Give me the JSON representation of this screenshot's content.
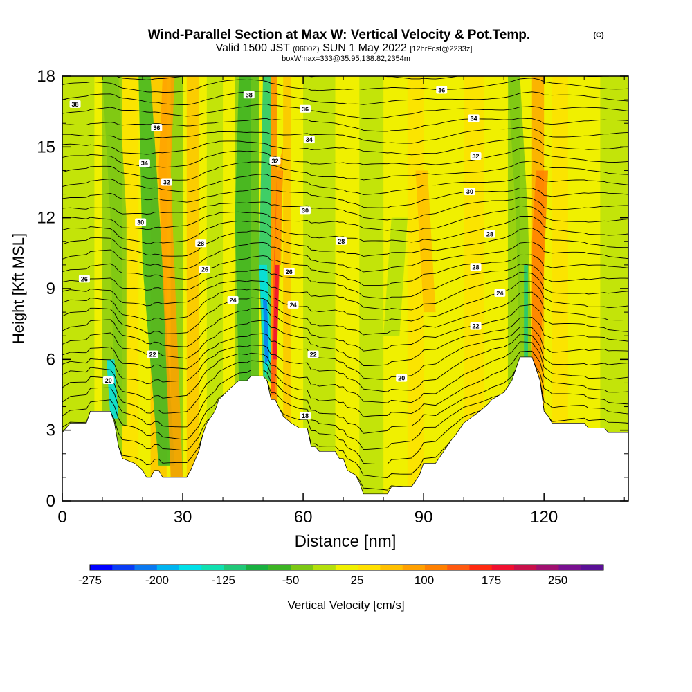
{
  "header": {
    "title": "Wind-Parallel Section at Max W: Vertical Velocity & Pot.Temp.",
    "copyright": "(C)",
    "valid_prefix": "Valid 1500 JST",
    "valid_zulu": "(0600Z)",
    "valid_date": "SUN 1 May 2022",
    "forecast": "[12hrFcst@2233z]",
    "box_info": "boxWmax=333@35.95,138.82,2354m"
  },
  "chart_data": {
    "type": "heatmap",
    "xlabel": "Distance [nm]",
    "ylabel": "Height [Kft MSL]",
    "xlim": [
      0,
      141
    ],
    "ylim": [
      0,
      18
    ],
    "x_ticks": [
      0,
      30,
      60,
      90,
      120
    ],
    "x_tick_labels": [
      "0",
      "30",
      "60",
      "90",
      "120"
    ],
    "y_ticks": [
      0,
      3,
      6,
      9,
      12,
      15,
      18
    ],
    "y_tick_labels": [
      "0",
      "3",
      "6",
      "9",
      "12",
      "15",
      "18"
    ],
    "colorbar": {
      "label": "Vertical Velocity [cm/s]",
      "tick_labels": [
        "-275",
        "-200",
        "-125",
        "-50",
        "25",
        "100",
        "175",
        "250"
      ],
      "colors": [
        "#0000ff",
        "#0a3cf4",
        "#0a78f0",
        "#00b4f0",
        "#00e0e8",
        "#10e0b0",
        "#20c878",
        "#18b040",
        "#3cb424",
        "#7cc814",
        "#b4e00c",
        "#f0f000",
        "#ffe000",
        "#ffc000",
        "#ffa000",
        "#ff8000",
        "#ff5a10",
        "#ff2a10",
        "#f01030",
        "#c8104a",
        "#a01070",
        "#781090",
        "#5a1096"
      ]
    },
    "terrain_kft": [
      [
        0,
        2.9
      ],
      [
        2,
        3.3
      ],
      [
        4,
        3.3
      ],
      [
        6,
        3.3
      ],
      [
        7,
        3.8
      ],
      [
        12,
        3.8
      ],
      [
        13,
        3.3
      ],
      [
        14,
        2.3
      ],
      [
        15,
        1.8
      ],
      [
        18,
        1.6
      ],
      [
        20,
        1.3
      ],
      [
        21,
        1.0
      ],
      [
        22,
        1.0
      ],
      [
        23,
        1.3
      ],
      [
        24,
        1.3
      ],
      [
        25,
        1.0
      ],
      [
        31,
        1.0
      ],
      [
        32,
        1.3
      ],
      [
        34,
        2.1
      ],
      [
        35,
        2.8
      ],
      [
        36,
        3.3
      ],
      [
        38,
        3.8
      ],
      [
        39,
        4.3
      ],
      [
        42,
        4.8
      ],
      [
        44,
        5.1
      ],
      [
        46,
        5.1
      ],
      [
        47,
        5.3
      ],
      [
        50,
        5.3
      ],
      [
        51,
        5.1
      ],
      [
        52,
        4.3
      ],
      [
        53,
        4.3
      ],
      [
        55,
        3.6
      ],
      [
        57,
        3.3
      ],
      [
        59,
        3.1
      ],
      [
        61,
        3.1
      ],
      [
        62,
        2.3
      ],
      [
        63,
        2.3
      ],
      [
        64,
        2.1
      ],
      [
        68,
        2.1
      ],
      [
        69,
        1.8
      ],
      [
        70,
        1.8
      ],
      [
        71,
        1.3
      ],
      [
        73,
        1.1
      ],
      [
        74,
        0.8
      ],
      [
        75,
        0.3
      ],
      [
        81,
        0.3
      ],
      [
        82,
        0.6
      ],
      [
        87,
        0.6
      ],
      [
        89,
        1.1
      ],
      [
        90,
        1.6
      ],
      [
        93,
        1.6
      ],
      [
        95,
        2.1
      ],
      [
        97,
        2.6
      ],
      [
        98,
        2.8
      ],
      [
        100,
        3.3
      ],
      [
        104,
        3.8
      ],
      [
        106,
        4.1
      ],
      [
        107,
        4.3
      ],
      [
        110,
        4.6
      ],
      [
        112,
        5.1
      ],
      [
        113,
        5.6
      ],
      [
        114,
        6.1
      ],
      [
        117,
        6.1
      ],
      [
        118,
        5.6
      ],
      [
        119,
        5.1
      ],
      [
        120,
        3.8
      ],
      [
        121,
        3.6
      ],
      [
        122,
        3.3
      ],
      [
        130,
        3.3
      ],
      [
        131,
        3.1
      ],
      [
        135,
        3.1
      ],
      [
        136,
        2.9
      ],
      [
        141,
        2.9
      ]
    ],
    "contour_labels": [
      {
        "text": "38",
        "x": 3.2,
        "y": 16.8
      },
      {
        "text": "38",
        "x": 46.5,
        "y": 17.2
      },
      {
        "text": "36",
        "x": 23.5,
        "y": 15.8
      },
      {
        "text": "36",
        "x": 60.5,
        "y": 16.6
      },
      {
        "text": "36",
        "x": 94.5,
        "y": 17.4
      },
      {
        "text": "34",
        "x": 20.5,
        "y": 14.3
      },
      {
        "text": "34",
        "x": 61.5,
        "y": 15.3
      },
      {
        "text": "34",
        "x": 102.5,
        "y": 16.2
      },
      {
        "text": "32",
        "x": 26,
        "y": 13.5
      },
      {
        "text": "32",
        "x": 53,
        "y": 14.4
      },
      {
        "text": "32",
        "x": 103,
        "y": 14.6
      },
      {
        "text": "30",
        "x": 19.5,
        "y": 11.8
      },
      {
        "text": "30",
        "x": 60.5,
        "y": 12.3
      },
      {
        "text": "30",
        "x": 101.5,
        "y": 13.1
      },
      {
        "text": "28",
        "x": 34.5,
        "y": 10.9
      },
      {
        "text": "28",
        "x": 69.5,
        "y": 11.0
      },
      {
        "text": "28",
        "x": 106.5,
        "y": 11.3
      },
      {
        "text": "28",
        "x": 103,
        "y": 9.9
      },
      {
        "text": "26",
        "x": 5.5,
        "y": 9.4
      },
      {
        "text": "26",
        "x": 35.5,
        "y": 9.8
      },
      {
        "text": "26",
        "x": 56.5,
        "y": 9.7
      },
      {
        "text": "24",
        "x": 42.5,
        "y": 8.5
      },
      {
        "text": "24",
        "x": 57.5,
        "y": 8.3
      },
      {
        "text": "24",
        "x": 109,
        "y": 8.8
      },
      {
        "text": "22",
        "x": 22.5,
        "y": 6.2
      },
      {
        "text": "22",
        "x": 62.5,
        "y": 6.2
      },
      {
        "text": "22",
        "x": 103,
        "y": 7.4
      },
      {
        "text": "20",
        "x": 11.5,
        "y": 5.1
      },
      {
        "text": "20",
        "x": 84.5,
        "y": 5.2
      },
      {
        "text": "18",
        "x": 60.5,
        "y": 3.6
      }
    ]
  }
}
